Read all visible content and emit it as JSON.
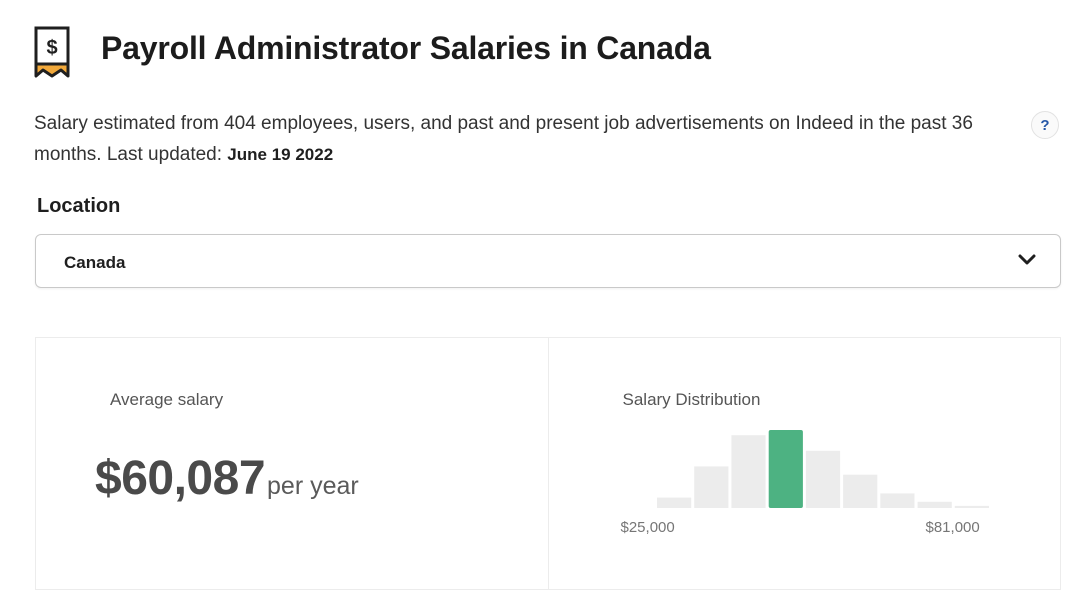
{
  "header": {
    "title": "Payroll Administrator Salaries in Canada",
    "icon": "salary-tag-icon"
  },
  "description": {
    "text": "Salary estimated from 404 employees, users, and past and present job advertisements on Indeed in the past 36 months. Last updated: ",
    "updated": "June 19 2022",
    "help_label": "?"
  },
  "location": {
    "label": "Location",
    "selected": "Canada",
    "icon": "chevron-down-icon"
  },
  "average": {
    "label": "Average salary",
    "amount": "$60,087",
    "unit": "per year"
  },
  "distribution": {
    "label": "Salary Distribution",
    "min_label": "$25,000",
    "max_label": "$81,000"
  },
  "chart_data": {
    "type": "bar",
    "values": [
      1,
      4,
      7,
      7.5,
      5.5,
      3.2,
      1.4,
      0.6,
      0.2
    ],
    "highlight_index": 3,
    "xlim": [
      25000,
      81000
    ],
    "colors": {
      "bar": "#ececec",
      "highlight": "#4db282"
    }
  },
  "colors": {
    "accent": "#2557a7",
    "highlight": "#4db282"
  }
}
